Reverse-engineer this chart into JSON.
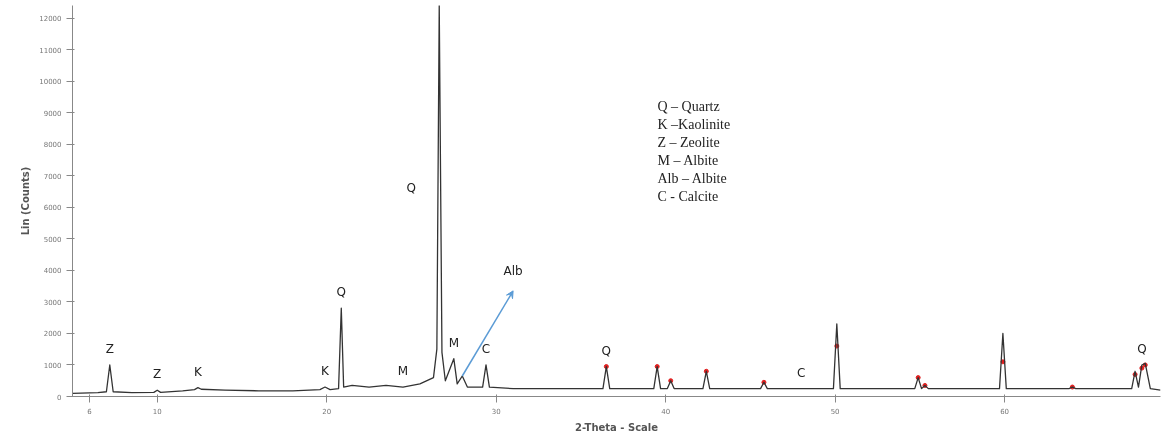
{
  "chart_data": {
    "type": "line",
    "xlabel": "2-Theta - Scale",
    "ylabel": "Lin (Counts)",
    "xlim": [
      5,
      69.2
    ],
    "ylim": [
      0,
      12400
    ],
    "xticks": [
      6,
      10,
      20,
      30,
      40,
      50,
      60
    ],
    "yticks": [
      0,
      1000,
      2000,
      3000,
      4000,
      5000,
      6000,
      7000,
      8000,
      9000,
      10000,
      11000,
      12000
    ],
    "grid": false,
    "marker": "none",
    "line_style": "solid",
    "series": [
      {
        "color": "#333333",
        "x": [
          5,
          6.5,
          7.0,
          7.2,
          7.4,
          8.5,
          9.8,
          10.0,
          10.2,
          11.5,
          12.2,
          12.4,
          12.6,
          14,
          16,
          18,
          19.6,
          19.9,
          20.2,
          20.7,
          20.86,
          21.0,
          21.5,
          22.5,
          23.5,
          24.5,
          25.5,
          26.3,
          26.5,
          26.64,
          26.8,
          27.0,
          27.5,
          27.7,
          28.0,
          28.3,
          29.2,
          29.4,
          29.6,
          31,
          33,
          35,
          36.3,
          36.5,
          36.7,
          38,
          39.3,
          39.5,
          39.7,
          40.1,
          40.3,
          40.5,
          42.2,
          42.4,
          42.6,
          44,
          45.6,
          45.8,
          46.0,
          48,
          49.9,
          50.1,
          50.3,
          52,
          54.7,
          54.9,
          55.1,
          55.3,
          55.5,
          57.5,
          59.7,
          59.9,
          60.1,
          62,
          63.8,
          64.0,
          64.2,
          66.5,
          67.5,
          67.7,
          67.9,
          68.1,
          68.3,
          68.6,
          69.2
        ],
        "values": [
          100,
          120,
          150,
          1000,
          150,
          120,
          130,
          200,
          130,
          180,
          220,
          280,
          230,
          200,
          180,
          180,
          220,
          300,
          220,
          250,
          2800,
          300,
          350,
          300,
          350,
          300,
          400,
          600,
          1500,
          12400,
          1400,
          500,
          1200,
          400,
          650,
          300,
          300,
          1000,
          300,
          250,
          250,
          250,
          250,
          950,
          250,
          250,
          250,
          950,
          250,
          250,
          500,
          250,
          250,
          800,
          250,
          250,
          250,
          450,
          250,
          250,
          250,
          2300,
          250,
          250,
          250,
          600,
          250,
          350,
          250,
          250,
          250,
          2000,
          250,
          250,
          250,
          300,
          250,
          250,
          250,
          800,
          300,
          1000,
          1050,
          250,
          200
        ]
      },
      {
        "type": "scatter",
        "color": "#e02020",
        "marker": "circle",
        "x": [
          36.5,
          39.5,
          40.3,
          42.4,
          45.8,
          50.1,
          54.9,
          55.3,
          59.9,
          64.0,
          67.7,
          68.1,
          68.3
        ],
        "values": [
          950,
          950,
          500,
          800,
          450,
          1600,
          600,
          350,
          1100,
          300,
          700,
          900,
          1000
        ]
      }
    ],
    "annotations": [
      {
        "text": "Z",
        "x": 7.2,
        "y": 1000
      },
      {
        "text": "Z",
        "x": 10.0,
        "y": 200
      },
      {
        "text": "K",
        "x": 12.4,
        "y": 280
      },
      {
        "text": "K",
        "x": 19.9,
        "y": 300
      },
      {
        "text": "Q",
        "x": 20.86,
        "y": 2800
      },
      {
        "text": "M",
        "x": 24.5,
        "y": 300
      },
      {
        "text": "Q",
        "x": 26.64,
        "y": 6600
      },
      {
        "text": "M",
        "x": 27.5,
        "y": 1200
      },
      {
        "text": "C",
        "x": 29.4,
        "y": 1000
      },
      {
        "text": "Alb",
        "x": 28.0,
        "y": 650
      },
      {
        "text": "Q",
        "x": 36.5,
        "y": 950
      },
      {
        "text": "C",
        "x": 48,
        "y": 250
      },
      {
        "text": "Q",
        "x": 68.1,
        "y": 1000
      },
      "Q – Quartz",
      "K –Kaolinite",
      "Z – Zeolite",
      "M – Albite",
      "Alb – Albite",
      "C - Calcite"
    ]
  }
}
